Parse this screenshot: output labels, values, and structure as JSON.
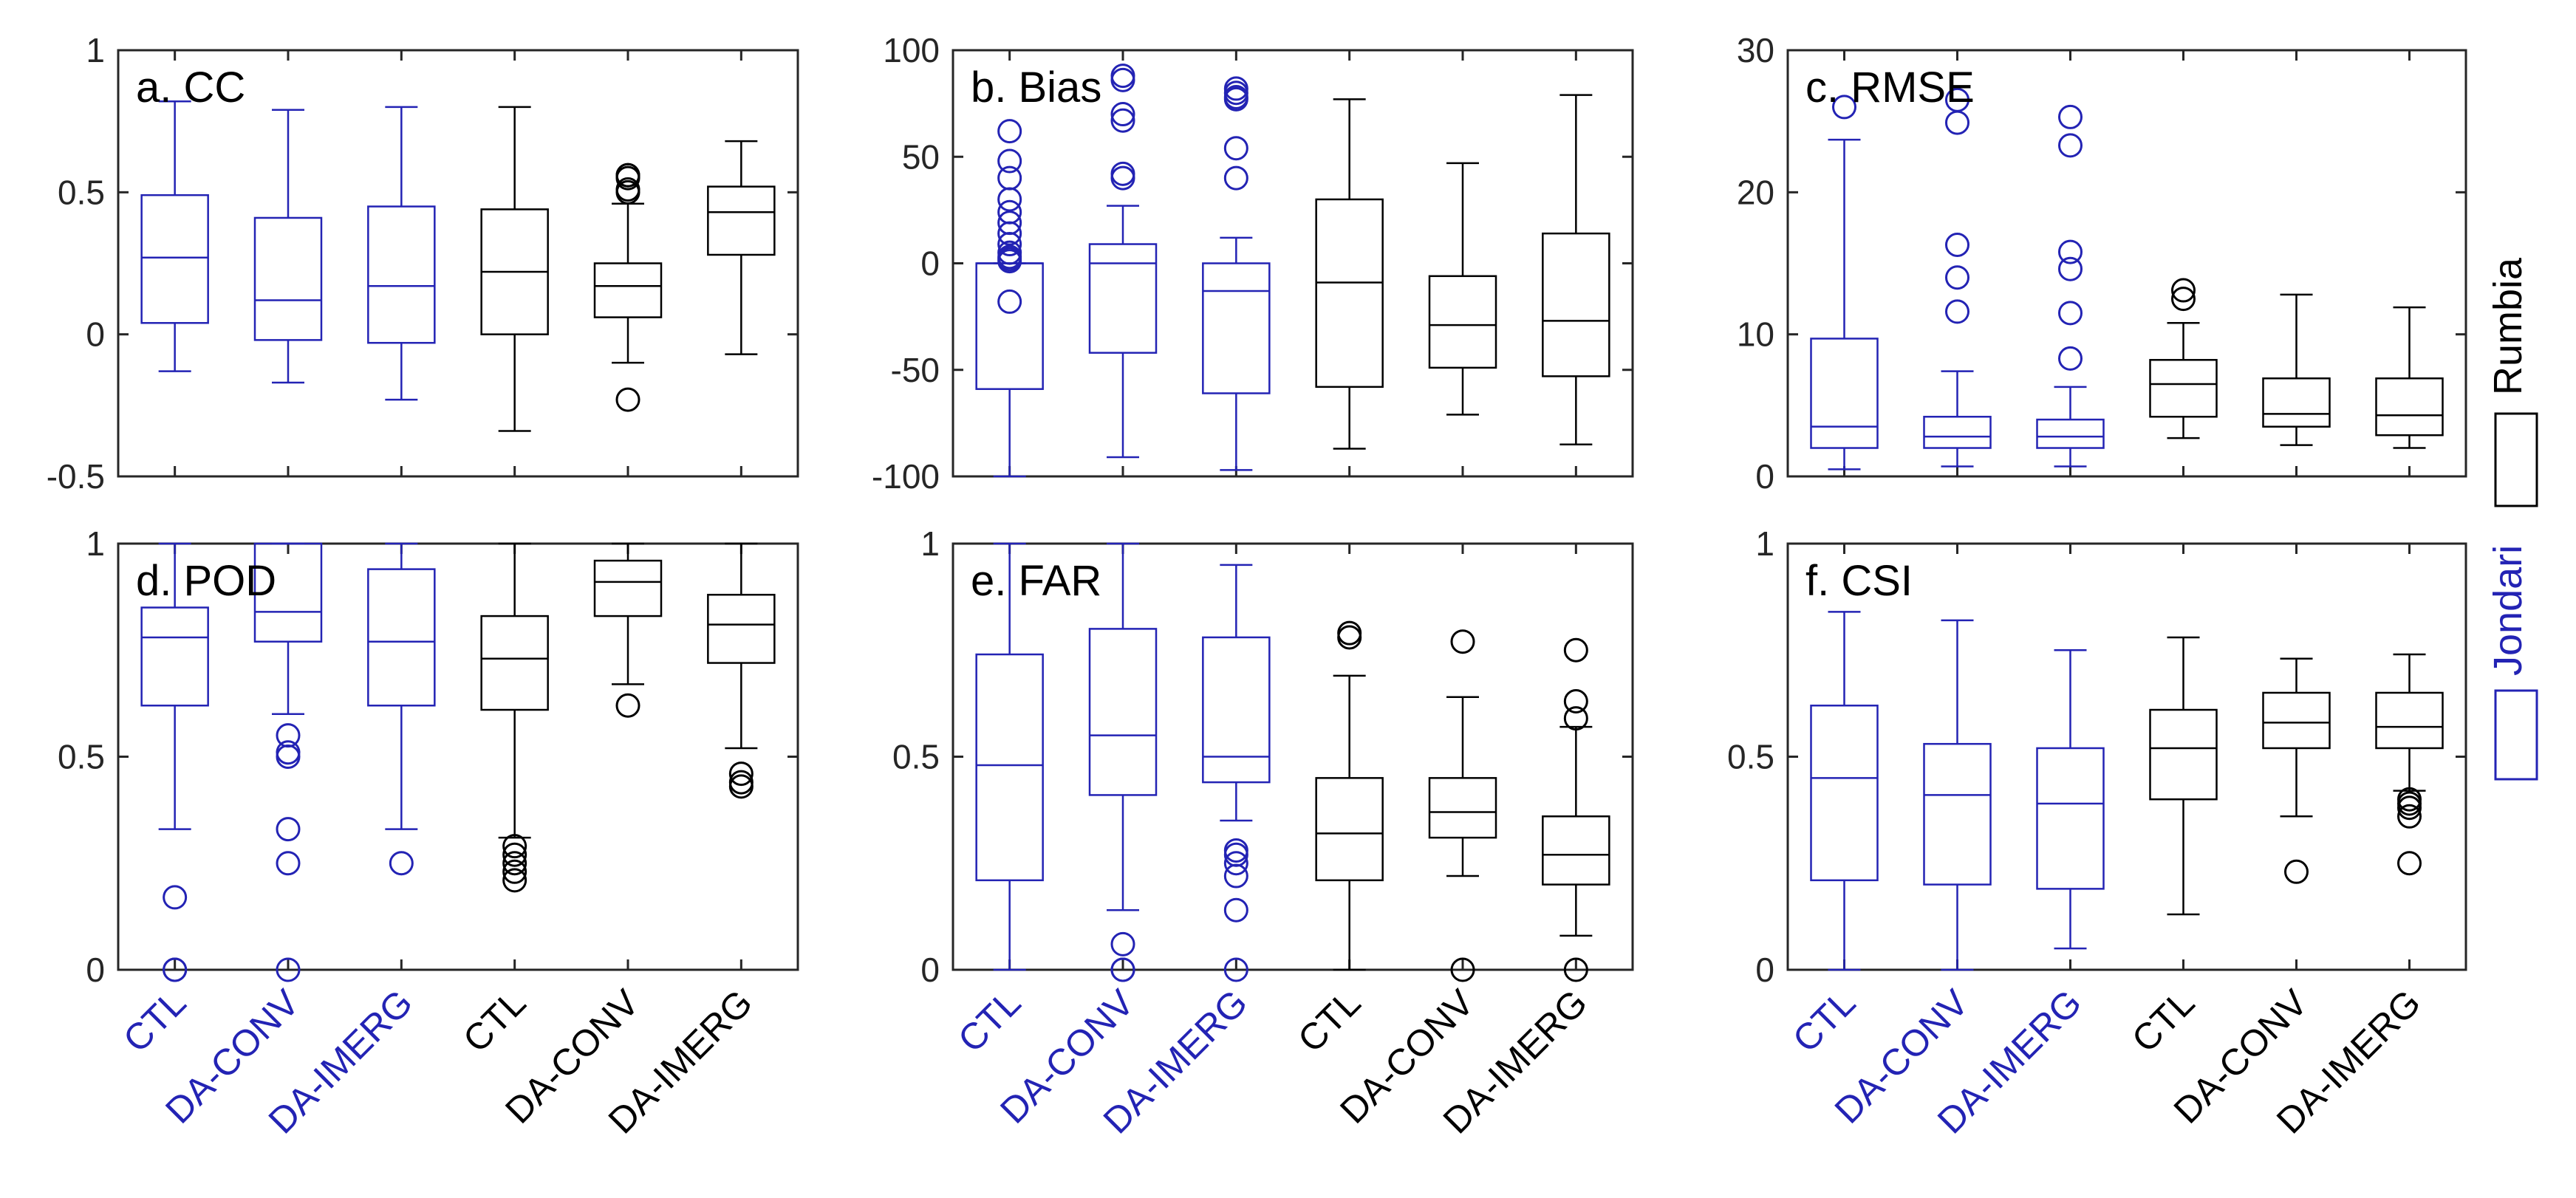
{
  "chart_data": {
    "type": "boxplot",
    "colors": {
      "Jondari": "#2323b4",
      "Rumbia": "#000000"
    },
    "categories": [
      "CTL",
      "DA-CONV",
      "DA-IMERG",
      "CTL",
      "DA-CONV",
      "DA-IMERG"
    ],
    "groups": [
      "Jondari",
      "Jondari",
      "Jondari",
      "Rumbia",
      "Rumbia",
      "Rumbia"
    ],
    "legend": [
      {
        "name": "Rumbia",
        "color": "#000000"
      },
      {
        "name": "Jondari",
        "color": "#2323b4"
      }
    ],
    "panels": [
      {
        "title": "a. CC",
        "ylim": [
          -0.5,
          1
        ],
        "yticks": [
          -0.5,
          0,
          0.5,
          1
        ],
        "ytick_labels": [
          "-0.5",
          "0",
          "0.5",
          "1"
        ],
        "boxes": [
          {
            "whislo": -0.13,
            "q1": 0.04,
            "med": 0.27,
            "q3": 0.49,
            "whishi": 0.82,
            "fliers": []
          },
          {
            "whislo": -0.17,
            "q1": -0.02,
            "med": 0.12,
            "q3": 0.41,
            "whishi": 0.79,
            "fliers": []
          },
          {
            "whislo": -0.23,
            "q1": -0.03,
            "med": 0.17,
            "q3": 0.45,
            "whishi": 0.8,
            "fliers": []
          },
          {
            "whislo": -0.34,
            "q1": 0.0,
            "med": 0.22,
            "q3": 0.44,
            "whishi": 0.8,
            "fliers": []
          },
          {
            "whislo": -0.1,
            "q1": 0.06,
            "med": 0.17,
            "q3": 0.25,
            "whishi": 0.46,
            "fliers": [
              0.5,
              0.51,
              0.55,
              0.56,
              0.56,
              -0.23
            ]
          },
          {
            "whislo": -0.07,
            "q1": 0.28,
            "med": 0.43,
            "q3": 0.52,
            "whishi": 0.68,
            "fliers": []
          }
        ]
      },
      {
        "title": "b. Bias",
        "ylim": [
          -100,
          100
        ],
        "yticks": [
          -100,
          -50,
          0,
          50,
          100
        ],
        "ytick_labels": [
          "-100",
          "-50",
          "0",
          "50",
          "100"
        ],
        "boxes": [
          {
            "whislo": -100,
            "q1": -59,
            "med": 0,
            "q3": 0,
            "whishi": 0,
            "fliers": [
              -18,
              1,
              2,
              3,
              5,
              9,
              14,
              19,
              24,
              30,
              40,
              48,
              62
            ]
          },
          {
            "whislo": -91,
            "q1": -42,
            "med": 0,
            "q3": 9,
            "whishi": 27,
            "fliers": [
              40,
              42,
              67,
              70,
              86,
              88
            ]
          },
          {
            "whislo": -97,
            "q1": -61,
            "med": -13,
            "q3": 0,
            "whishi": 12,
            "fliers": [
              40,
              54,
              77,
              78,
              80,
              82
            ]
          },
          {
            "whislo": -87,
            "q1": -58,
            "med": -9,
            "q3": 30,
            "whishi": 77,
            "fliers": []
          },
          {
            "whislo": -71,
            "q1": -49,
            "med": -29,
            "q3": -6,
            "whishi": 47,
            "fliers": []
          },
          {
            "whislo": -85,
            "q1": -53,
            "med": -27,
            "q3": 14,
            "whishi": 79,
            "fliers": []
          }
        ]
      },
      {
        "title": "c. RMSE",
        "ylim": [
          0,
          30
        ],
        "yticks": [
          0,
          10,
          20,
          30
        ],
        "ytick_labels": [
          "0",
          "10",
          "20",
          "30"
        ],
        "boxes": [
          {
            "whislo": 0.5,
            "q1": 2.0,
            "med": 3.5,
            "q3": 9.7,
            "whishi": 23.7,
            "fliers": [
              26.0
            ]
          },
          {
            "whislo": 0.7,
            "q1": 2.0,
            "med": 2.8,
            "q3": 4.2,
            "whishi": 7.4,
            "fliers": [
              11.6,
              14.0,
              16.3,
              24.9,
              26.5
            ]
          },
          {
            "whislo": 0.7,
            "q1": 2.0,
            "med": 2.8,
            "q3": 4.0,
            "whishi": 6.3,
            "fliers": [
              8.3,
              11.5,
              14.6,
              15.8,
              23.3,
              25.3
            ]
          },
          {
            "whislo": 2.7,
            "q1": 4.2,
            "med": 6.5,
            "q3": 8.2,
            "whishi": 10.8,
            "fliers": [
              12.5,
              13.1
            ]
          },
          {
            "whislo": 2.2,
            "q1": 3.5,
            "med": 4.4,
            "q3": 6.9,
            "whishi": 12.8,
            "fliers": []
          },
          {
            "whislo": 2.0,
            "q1": 2.9,
            "med": 4.3,
            "q3": 6.9,
            "whishi": 11.9,
            "fliers": []
          }
        ]
      },
      {
        "title": "d. POD",
        "ylim": [
          0,
          1
        ],
        "yticks": [
          0,
          0.5,
          1
        ],
        "ytick_labels": [
          "0",
          "0.5",
          "1"
        ],
        "boxes": [
          {
            "whislo": 0.33,
            "q1": 0.62,
            "med": 0.78,
            "q3": 0.85,
            "whishi": 1.0,
            "fliers": [
              0.17,
              0.0,
              0.0
            ]
          },
          {
            "whislo": 0.6,
            "q1": 0.77,
            "med": 0.84,
            "q3": 1.0,
            "whishi": 1.0,
            "fliers": [
              0.55,
              0.51,
              0.5,
              0.33,
              0.25,
              0.0
            ]
          },
          {
            "whislo": 0.33,
            "q1": 0.62,
            "med": 0.77,
            "q3": 0.94,
            "whishi": 1.0,
            "fliers": [
              0.25
            ]
          },
          {
            "whislo": 0.31,
            "q1": 0.61,
            "med": 0.73,
            "q3": 0.83,
            "whishi": 1.0,
            "fliers": [
              0.29,
              0.27,
              0.25,
              0.23,
              0.21
            ]
          },
          {
            "whislo": 0.67,
            "q1": 0.83,
            "med": 0.91,
            "q3": 0.96,
            "whishi": 1.0,
            "fliers": [
              0.62
            ]
          },
          {
            "whislo": 0.52,
            "q1": 0.72,
            "med": 0.81,
            "q3": 0.88,
            "whishi": 1.0,
            "fliers": [
              0.46,
              0.44,
              0.43
            ]
          }
        ]
      },
      {
        "title": "e. FAR",
        "ylim": [
          0,
          1
        ],
        "yticks": [
          0,
          0.5,
          1
        ],
        "ytick_labels": [
          "0",
          "0.5",
          "1"
        ],
        "boxes": [
          {
            "whislo": 0.0,
            "q1": 0.21,
            "med": 0.48,
            "q3": 0.74,
            "whishi": 1.0,
            "fliers": []
          },
          {
            "whislo": 0.14,
            "q1": 0.41,
            "med": 0.55,
            "q3": 0.8,
            "whishi": 1.0,
            "fliers": [
              0.06,
              0.0,
              0.0
            ]
          },
          {
            "whislo": 0.35,
            "q1": 0.44,
            "med": 0.5,
            "q3": 0.78,
            "whishi": 0.95,
            "fliers": [
              0.28,
              0.27,
              0.25,
              0.22,
              0.14,
              0.0
            ]
          },
          {
            "whislo": 0.0,
            "q1": 0.21,
            "med": 0.32,
            "q3": 0.45,
            "whishi": 0.69,
            "fliers": [
              0.78,
              0.79
            ]
          },
          {
            "whislo": 0.22,
            "q1": 0.31,
            "med": 0.37,
            "q3": 0.45,
            "whishi": 0.64,
            "fliers": [
              0.77,
              0.0
            ]
          },
          {
            "whislo": 0.08,
            "q1": 0.2,
            "med": 0.27,
            "q3": 0.36,
            "whishi": 0.57,
            "fliers": [
              0.59,
              0.63,
              0.75,
              0.0
            ]
          }
        ]
      },
      {
        "title": "f. CSI",
        "ylim": [
          0,
          1
        ],
        "yticks": [
          0,
          0.5,
          1
        ],
        "ytick_labels": [
          "0",
          "0.5",
          "1"
        ],
        "boxes": [
          {
            "whislo": 0.0,
            "q1": 0.21,
            "med": 0.45,
            "q3": 0.62,
            "whishi": 0.84,
            "fliers": []
          },
          {
            "whislo": 0.0,
            "q1": 0.2,
            "med": 0.41,
            "q3": 0.53,
            "whishi": 0.82,
            "fliers": []
          },
          {
            "whislo": 0.05,
            "q1": 0.19,
            "med": 0.39,
            "q3": 0.52,
            "whishi": 0.75,
            "fliers": []
          },
          {
            "whislo": 0.13,
            "q1": 0.4,
            "med": 0.52,
            "q3": 0.61,
            "whishi": 0.78,
            "fliers": []
          },
          {
            "whislo": 0.36,
            "q1": 0.52,
            "med": 0.58,
            "q3": 0.65,
            "whishi": 0.73,
            "fliers": [
              0.23
            ]
          },
          {
            "whislo": 0.42,
            "q1": 0.52,
            "med": 0.57,
            "q3": 0.65,
            "whishi": 0.74,
            "fliers": [
              0.4,
              0.39,
              0.38,
              0.36,
              0.25
            ]
          }
        ]
      }
    ]
  }
}
